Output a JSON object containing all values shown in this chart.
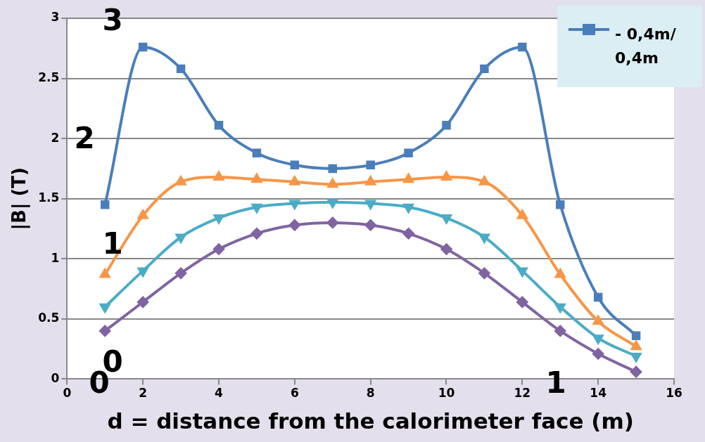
{
  "chart_data": {
    "type": "line",
    "xlabel": "d = distance from the calorimeter face (m)",
    "ylabel": "|B| (T)",
    "x": [
      1,
      2,
      3,
      4,
      5,
      6,
      7,
      8,
      9,
      10,
      11,
      12,
      13,
      14,
      15
    ],
    "series": [
      {
        "name": "- 0,4m/0,4m",
        "color": "#4a7ebb",
        "marker": "square",
        "values": [
          1.45,
          2.76,
          2.58,
          2.11,
          1.88,
          1.78,
          1.75,
          1.78,
          1.88,
          2.11,
          2.58,
          2.76,
          1.45,
          0.68,
          0.36
        ]
      },
      {
        "color": "#f79646",
        "marker": "triangle",
        "values": [
          0.87,
          1.36,
          1.64,
          1.68,
          1.66,
          1.64,
          1.62,
          1.64,
          1.66,
          1.68,
          1.64,
          1.36,
          0.87,
          0.48,
          0.27
        ]
      },
      {
        "color": "#4bacc6",
        "marker": "triangle-down",
        "values": [
          0.6,
          0.9,
          1.18,
          1.34,
          1.43,
          1.46,
          1.47,
          1.46,
          1.43,
          1.34,
          1.18,
          0.9,
          0.6,
          0.34,
          0.19
        ]
      },
      {
        "color": "#8064a2",
        "marker": "diamond",
        "values": [
          0.4,
          0.64,
          0.88,
          1.08,
          1.21,
          1.28,
          1.3,
          1.28,
          1.21,
          1.08,
          0.88,
          0.64,
          0.4,
          0.21,
          0.06
        ]
      }
    ],
    "xlim": [
      0,
      16
    ],
    "xticks": [
      0,
      2,
      4,
      6,
      8,
      10,
      12,
      14,
      16
    ],
    "ylim": [
      0,
      3
    ],
    "yticks": [
      0,
      0.5,
      1,
      1.5,
      2,
      2.5,
      3
    ],
    "grid": "y",
    "legend": "top right",
    "annotations": [
      "3",
      "2",
      "1",
      "0",
      "0",
      "1"
    ]
  }
}
